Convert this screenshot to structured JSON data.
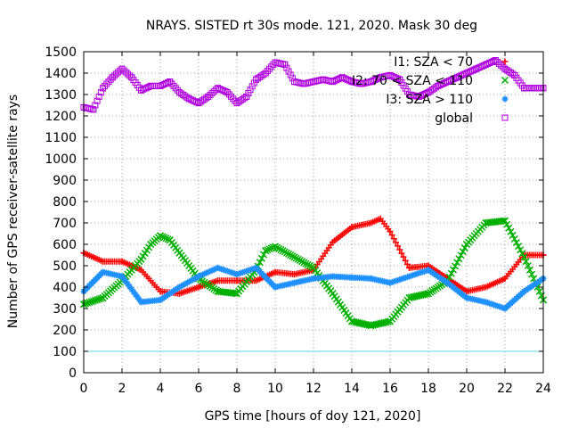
{
  "chart_data": {
    "type": "scatter",
    "title": "NRAYS. SISTED rt 30s mode. 121, 2020. Mask 30 deg",
    "xlabel": "GPS time [hours of doy 121, 2020]",
    "ylabel": "Number of GPS receiver-satellite rays",
    "xlim": [
      0,
      24
    ],
    "ylim": [
      0,
      1500
    ],
    "xticks": [
      "0",
      "2",
      "4",
      "6",
      "8",
      "10",
      "12",
      "14",
      "16",
      "18",
      "20",
      "22",
      "24"
    ],
    "yticks": [
      "0",
      "100",
      "200",
      "300",
      "400",
      "500",
      "600",
      "700",
      "800",
      "900",
      "1000",
      "1100",
      "1200",
      "1300",
      "1400",
      "1500"
    ],
    "grid": true,
    "legend_position": "top-right",
    "reference_line": {
      "y": 100,
      "color": "#5bd6e6"
    },
    "series": [
      {
        "name": "I1: SZA < 70",
        "marker": "+",
        "color": "#ff0000",
        "x": [
          0,
          1,
          2,
          3,
          4,
          5,
          6,
          7,
          8,
          9,
          10,
          11,
          12,
          13,
          14,
          15,
          15.5,
          16,
          17,
          18,
          19,
          20,
          21,
          22,
          23,
          24
        ],
        "y": [
          560,
          520,
          520,
          480,
          380,
          370,
          400,
          430,
          430,
          430,
          470,
          460,
          480,
          610,
          680,
          700,
          720,
          660,
          490,
          500,
          440,
          380,
          400,
          440,
          550,
          550
        ]
      },
      {
        "name": "I2: 70 < SZA < 110",
        "marker": "x",
        "color": "#00b000",
        "x": [
          0,
          1,
          2,
          3,
          3.5,
          4,
          4.5,
          5,
          6,
          7,
          8,
          9,
          9.5,
          10,
          11,
          12,
          13,
          14,
          15,
          16,
          17,
          18,
          19,
          20,
          21,
          22,
          23,
          24
        ],
        "y": [
          320,
          350,
          430,
          530,
          600,
          640,
          620,
          560,
          440,
          380,
          370,
          480,
          570,
          590,
          540,
          490,
          370,
          240,
          220,
          240,
          350,
          370,
          430,
          600,
          700,
          710,
          540,
          340
        ]
      },
      {
        "name": "I3: SZA > 110",
        "marker": "*",
        "color": "#1e90ff",
        "x": [
          0,
          1,
          2,
          3,
          4,
          5,
          6,
          7,
          8,
          9,
          10,
          11,
          12,
          13,
          14,
          15,
          16,
          17,
          18,
          19,
          20,
          21,
          22,
          23,
          24
        ],
        "y": [
          380,
          470,
          450,
          330,
          340,
          400,
          450,
          490,
          460,
          490,
          400,
          420,
          440,
          450,
          445,
          440,
          420,
          450,
          480,
          420,
          350,
          330,
          300,
          380,
          440
        ]
      },
      {
        "name": "global",
        "marker": "square",
        "color": "#b000e0",
        "x": [
          0,
          0.5,
          1,
          1.5,
          2,
          2.5,
          3,
          3.5,
          4,
          4.5,
          5,
          5.5,
          6,
          6.5,
          7,
          7.5,
          8,
          8.5,
          9,
          9.5,
          10,
          10.5,
          11,
          11.5,
          12,
          12.5,
          13,
          13.5,
          14,
          14.5,
          15,
          15.5,
          16,
          16.5,
          17,
          17.5,
          18,
          18.5,
          19,
          19.5,
          20,
          20.5,
          21,
          21.5,
          22,
          22.5,
          23,
          23.5,
          24
        ],
        "y": [
          1240,
          1230,
          1330,
          1380,
          1420,
          1380,
          1320,
          1340,
          1340,
          1360,
          1310,
          1280,
          1260,
          1290,
          1330,
          1310,
          1260,
          1290,
          1370,
          1400,
          1450,
          1440,
          1360,
          1350,
          1360,
          1370,
          1360,
          1380,
          1360,
          1350,
          1360,
          1380,
          1390,
          1370,
          1300,
          1290,
          1310,
          1340,
          1360,
          1380,
          1400,
          1420,
          1440,
          1460,
          1420,
          1390,
          1330,
          1330,
          1330
        ]
      }
    ]
  }
}
